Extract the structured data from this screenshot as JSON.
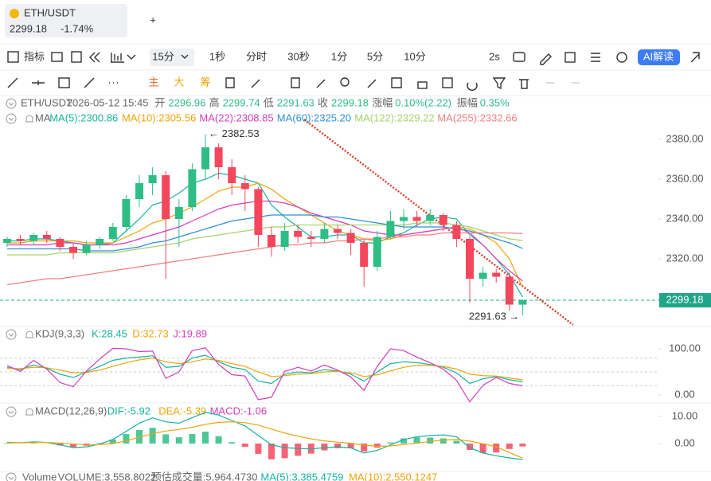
{
  "header": {
    "symbol": "ETH/USDT",
    "price": "2299.18",
    "change": "-1.74%",
    "add": "+"
  },
  "toolbar": {
    "indicator": "指标",
    "intervals": [
      "15分",
      "1秒",
      "分时",
      "30秒",
      "1分",
      "5分",
      "10分"
    ],
    "refresh": "2s",
    "ai": "AI解读"
  },
  "draw_toolbar": {
    "modes": [
      "主",
      "大",
      "筹"
    ]
  },
  "info": {
    "symbol": "ETH/USDT",
    "time": "2026-05-12 15:45",
    "items": [
      {
        "label": "开",
        "value": "2296.96"
      },
      {
        "label": "高",
        "value": "2299.74"
      },
      {
        "label": "低",
        "value": "2291.63"
      },
      {
        "label": "收",
        "value": "2299.18"
      },
      {
        "label": "涨幅",
        "value": "0.10%(2.22)"
      },
      {
        "label": "振幅",
        "value": "0.35%"
      }
    ]
  },
  "chart_data": [
    {
      "type": "candlestick",
      "title": "MA",
      "up_color": "#2ebd85",
      "down_color": "#f6465d",
      "grid": false,
      "ylim": [
        2286.8,
        2386
      ],
      "yticks": [
        {
          "value": 2380,
          "label": "2380.00"
        },
        {
          "value": 2360,
          "label": "2360.00"
        },
        {
          "value": 2340,
          "label": "2340.00"
        },
        {
          "value": 2320,
          "label": "2320.00"
        }
      ],
      "open": [
        2328,
        2330,
        2329,
        2332,
        2330,
        2326,
        2323,
        2327,
        2330,
        2336,
        2350,
        2358,
        2362,
        2340,
        2346,
        2365,
        2376,
        2366,
        2358,
        2355,
        2332,
        2326,
        2334,
        2331,
        2330,
        2335,
        2333,
        2328,
        2316,
        2331,
        2339,
        2341,
        2339,
        2342,
        2337,
        2330,
        2310,
        2313,
        2311,
        2296.96
      ],
      "high": [
        2331,
        2332,
        2333,
        2334,
        2331,
        2328,
        2329,
        2331,
        2338,
        2352,
        2362,
        2366,
        2364,
        2350,
        2368,
        2382.53,
        2378,
        2370,
        2362,
        2356,
        2336,
        2338,
        2337,
        2334,
        2338,
        2337,
        2335,
        2330,
        2334,
        2344,
        2345,
        2344,
        2345,
        2343,
        2339,
        2331,
        2316,
        2315,
        2313,
        2299.74
      ],
      "low": [
        2326,
        2327,
        2327,
        2328,
        2324,
        2320,
        2322,
        2325,
        2329,
        2334,
        2346,
        2352,
        2310,
        2326,
        2344,
        2360,
        2360,
        2352,
        2344,
        2326,
        2321,
        2324,
        2328,
        2326,
        2328,
        2330,
        2322,
        2306,
        2314,
        2330,
        2335,
        2336,
        2337,
        2334,
        2326,
        2298,
        2306,
        2308,
        2294,
        2291.63
      ],
      "close": [
        2330,
        2329,
        2332,
        2330,
        2326,
        2323,
        2327,
        2330,
        2336,
        2350,
        2358,
        2362,
        2340,
        2346,
        2365,
        2376,
        2366,
        2358,
        2355,
        2332,
        2326,
        2334,
        2331,
        2330,
        2335,
        2333,
        2328,
        2316,
        2331,
        2339,
        2341,
        2339,
        2342,
        2337,
        2330,
        2310,
        2313,
        2311,
        2297,
        2299.18
      ],
      "series": [
        {
          "name": "MA(5):2300.86",
          "color": "#16b3a0",
          "values": [
            2329,
            2329,
            2330,
            2330,
            2329,
            2328,
            2327,
            2327,
            2328,
            2334,
            2340,
            2347,
            2349,
            2353,
            2358,
            2360,
            2363,
            2362,
            2360,
            2358,
            2347,
            2341,
            2336,
            2331,
            2331,
            2332,
            2332,
            2328,
            2328,
            2331,
            2333,
            2337,
            2340,
            2341,
            2340,
            2332,
            2327,
            2320,
            2312,
            2300.86
          ]
        },
        {
          "name": "MA(10):2305.56",
          "color": "#f0a30a",
          "values": [
            2328,
            2328,
            2329,
            2329,
            2329,
            2329,
            2328,
            2328,
            2328,
            2331,
            2334,
            2338,
            2340,
            2343,
            2346,
            2350,
            2354,
            2356,
            2356,
            2358,
            2355,
            2350,
            2346,
            2342,
            2338,
            2334,
            2332,
            2330,
            2329,
            2330,
            2332,
            2333,
            2334,
            2335,
            2336,
            2335,
            2332,
            2328,
            2320,
            2305.56
          ]
        },
        {
          "name": "MA(22):2308.85",
          "color": "#d43dbe",
          "values": [
            2327,
            2327,
            2327,
            2327,
            2328,
            2328,
            2327,
            2327,
            2327,
            2328,
            2330,
            2332,
            2334,
            2336,
            2339,
            2342,
            2345,
            2347,
            2348,
            2349,
            2349,
            2348,
            2346,
            2343,
            2341,
            2339,
            2337,
            2334,
            2333,
            2332,
            2332,
            2333,
            2334,
            2335,
            2336,
            2333,
            2327,
            2320,
            2314,
            2308.85
          ]
        },
        {
          "name": "MA(60):2325.20",
          "color": "#2f8fd8",
          "values": [
            2325,
            2325,
            2325,
            2325,
            2325,
            2325,
            2324,
            2324,
            2324,
            2325,
            2326,
            2328,
            2329,
            2331,
            2333,
            2335,
            2337,
            2339,
            2340,
            2341,
            2342,
            2342,
            2342,
            2342,
            2341,
            2341,
            2340,
            2339,
            2338,
            2337,
            2336,
            2336,
            2336,
            2336,
            2335,
            2334,
            2332,
            2330,
            2328,
            2325.2
          ]
        },
        {
          "name": "MA(122):2329.22",
          "color": "#a5d36b",
          "values": [
            2322,
            2322,
            2322,
            2322,
            2323,
            2323,
            2323,
            2323,
            2323,
            2324,
            2325,
            2326,
            2327,
            2328,
            2330,
            2331,
            2332,
            2333,
            2334,
            2335,
            2336,
            2336,
            2337,
            2337,
            2337,
            2337,
            2337,
            2337,
            2337,
            2337,
            2337,
            2338,
            2338,
            2338,
            2337,
            2336,
            2334,
            2332,
            2330,
            2329.22
          ]
        },
        {
          "name": "MA(255):2332.66",
          "color": "#f08080",
          "values": [
            2307,
            2308,
            2309,
            2310,
            2310,
            2311,
            2312,
            2313,
            2314,
            2315,
            2316,
            2317,
            2318,
            2319,
            2320,
            2321,
            2322,
            2323,
            2324,
            2325,
            2326,
            2327,
            2327,
            2328,
            2328,
            2329,
            2329,
            2330,
            2330,
            2331,
            2331,
            2332,
            2332,
            2333,
            2333,
            2333,
            2333,
            2333,
            2333,
            2332.66
          ]
        }
      ],
      "high_label": "← 2382.53",
      "low_label": "2291.63 →",
      "last_price": 2299.18,
      "last_color": "#1fa58a"
    },
    {
      "type": "line",
      "title": "KDJ(9,3,3)",
      "ylim": [
        -10.3,
        113.8
      ],
      "yticks": [
        {
          "value": 100,
          "label": "100.00"
        },
        {
          "value": 0,
          "label": "0.00"
        }
      ],
      "hlines": [
        80,
        50,
        20
      ],
      "series": [
        {
          "name": "K:28.45",
          "color": "#16b3a0",
          "values": [
            60,
            55,
            65,
            58,
            45,
            38,
            50,
            62,
            75,
            80,
            82,
            85,
            60,
            62,
            80,
            86,
            72,
            60,
            55,
            30,
            25,
            45,
            50,
            48,
            55,
            52,
            45,
            30,
            50,
            68,
            72,
            70,
            66,
            60,
            48,
            25,
            35,
            40,
            33,
            28.45
          ]
        },
        {
          "name": "D:32.73",
          "color": "#f0a30a",
          "values": [
            58,
            57,
            60,
            59,
            54,
            48,
            49,
            54,
            62,
            70,
            76,
            80,
            72,
            68,
            72,
            78,
            75,
            68,
            62,
            50,
            40,
            42,
            45,
            46,
            50,
            51,
            48,
            40,
            44,
            52,
            60,
            64,
            64,
            62,
            56,
            45,
            42,
            41,
            37,
            32.73
          ]
        },
        {
          "name": "J:19.89",
          "color": "#d43dbe",
          "values": [
            64,
            51,
            75,
            56,
            27,
            18,
            52,
            78,
            101,
            100,
            94,
            95,
            36,
            50,
            96,
            102,
            66,
            44,
            41,
            -10,
            -5,
            51,
            60,
            52,
            65,
            54,
            39,
            10,
            62,
            100,
            96,
            82,
            70,
            56,
            32,
            -15,
            21,
            38,
            25,
            19.89
          ]
        }
      ]
    },
    {
      "type": "macd",
      "title": "MACD(12,26,9)",
      "ylim": [
        -9.7,
        13.8
      ],
      "yticks": [
        {
          "value": 10,
          "label": "10.00"
        },
        {
          "value": 0,
          "label": "0.00"
        }
      ],
      "up_color": "#2ebd85",
      "down_color": "#f6465d",
      "series": [
        {
          "name": "DIF:-5.92",
          "color": "#16b3a0",
          "values": [
            0.5,
            0.3,
            0.6,
            0.4,
            -0.5,
            -1.5,
            -1.2,
            -0.2,
            1.5,
            4.5,
            7.5,
            9.5,
            8,
            7.5,
            9.5,
            11.5,
            10.5,
            8.5,
            6.5,
            3,
            -0.5,
            -1.5,
            -1.8,
            -2,
            -1.5,
            -1.2,
            -1.6,
            -3.5,
            -2.5,
            -0.5,
            1.5,
            2.5,
            3,
            3.2,
            2.5,
            -1.5,
            -3.5,
            -4.5,
            -5.3,
            -5.92
          ]
        },
        {
          "name": "DEA:-5.39",
          "color": "#f0a30a",
          "values": [
            0.3,
            0.3,
            0.4,
            0.4,
            0.2,
            -0.2,
            -0.4,
            -0.4,
            0,
            1,
            2.3,
            3.7,
            4.6,
            5.2,
            6,
            7.1,
            7.8,
            8,
            7.7,
            6.8,
            5.3,
            3.9,
            2.7,
            1.7,
            1,
            0.5,
            0.1,
            -0.6,
            -1,
            -0.9,
            -0.4,
            0.2,
            0.8,
            1.3,
            1.5,
            0.9,
            -0.1,
            -1.2,
            -3.3,
            -5.39
          ]
        },
        {
          "name": "MACD:-1.06",
          "color": "#d43dbe",
          "histogram": true,
          "values": [
            0.2,
            0,
            0.2,
            0,
            -0.7,
            -1.3,
            -0.8,
            0.2,
            1.5,
            3.5,
            5,
            5.8,
            3.4,
            2.3,
            3.5,
            4.4,
            2.7,
            0.5,
            -1.2,
            -3.8,
            -5.8,
            -5.4,
            -4.5,
            -3.7,
            -2.5,
            -1.7,
            -1.7,
            -2.9,
            -1.5,
            0.4,
            1.9,
            2.3,
            2.2,
            1.9,
            1,
            -2.4,
            -3.4,
            -3.3,
            -2,
            -1.06
          ]
        }
      ]
    }
  ],
  "volume": {
    "title": "Volume",
    "text": "VOLUME:3,558.8022",
    "estimate": "预估成交量:5,964.4730",
    "ma5": "MA(5):3,385.4759",
    "ma10": "MA(10):2,550.1247"
  }
}
